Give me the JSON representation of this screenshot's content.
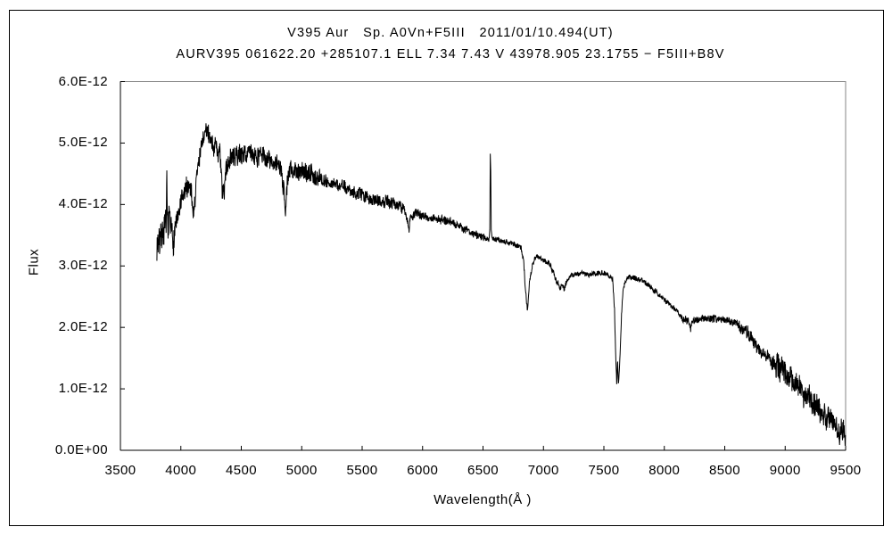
{
  "header": {
    "title_line1": "V395 Aur   Sp. A0Vn+F5III   2011/01/10.494(UT)",
    "title_line2": "AURV395 061622.20 +285107.1 ELL 7.34 7.43 V 43978.905 23.1755 − F5III+B8V"
  },
  "colors": {
    "background": "#ffffff",
    "plot_border": "#848484",
    "axis": "#000000",
    "line": "#000000",
    "text": "#000000"
  },
  "chart_data": {
    "type": "line",
    "title": "V395 Aur   Sp. A0Vn+F5III   2011/01/10.494(UT)",
    "subtitle": "AURV395 061622.20 +285107.1 ELL 7.34 7.43 V 43978.905 23.1755 − F5III+B8V",
    "xlabel": "Wavelength(Å )",
    "ylabel": "Flux",
    "grid": false,
    "legend": false,
    "xlim": [
      3500,
      9500
    ],
    "ylim_1e12": [
      0,
      6
    ],
    "x_ticks": [
      3500,
      4000,
      4500,
      5000,
      5500,
      6000,
      6500,
      7000,
      7500,
      8000,
      8500,
      9000,
      9500
    ],
    "x_tick_labels": [
      "3500",
      "4000",
      "4500",
      "5000",
      "5500",
      "6000",
      "6500",
      "7000",
      "7500",
      "8000",
      "8500",
      "9000",
      "9500"
    ],
    "y_ticks_1e12": [
      0,
      1,
      2,
      3,
      4,
      5,
      6
    ],
    "y_tick_labels": [
      "0.0E+00",
      "1.0E-12",
      "2.0E-12",
      "3.0E-12",
      "4.0E-12",
      "5.0E-12",
      "6.0E-12"
    ],
    "series": [
      {
        "name": "spectrum",
        "flux_unit_scale": "1e-12",
        "sample_step_angstrom": 2,
        "noise_seed": 7,
        "control_points": [
          [
            3802,
            3.35
          ],
          [
            3830,
            3.5
          ],
          [
            3858,
            3.62
          ],
          [
            3879,
            3.66
          ],
          [
            3883,
            4.38
          ],
          [
            3887,
            3.7
          ],
          [
            3910,
            3.66
          ],
          [
            3933,
            3.42
          ],
          [
            3955,
            3.68
          ],
          [
            3980,
            3.78
          ],
          [
            4005,
            4.05
          ],
          [
            4035,
            4.18
          ],
          [
            4060,
            4.27
          ],
          [
            4082,
            4.32
          ],
          [
            4098,
            4.0
          ],
          [
            4106,
            3.78
          ],
          [
            4118,
            4.15
          ],
          [
            4132,
            4.45
          ],
          [
            4152,
            4.75
          ],
          [
            4175,
            5.0
          ],
          [
            4200,
            5.12
          ],
          [
            4218,
            5.18
          ],
          [
            4240,
            5.1
          ],
          [
            4268,
            5.0
          ],
          [
            4295,
            4.9
          ],
          [
            4322,
            4.8
          ],
          [
            4338,
            4.35
          ],
          [
            4345,
            4.0
          ],
          [
            4352,
            4.35
          ],
          [
            4358,
            4.05
          ],
          [
            4372,
            4.62
          ],
          [
            4400,
            4.72
          ],
          [
            4440,
            4.78
          ],
          [
            4490,
            4.8
          ],
          [
            4540,
            4.85
          ],
          [
            4590,
            4.82
          ],
          [
            4640,
            4.8
          ],
          [
            4690,
            4.76
          ],
          [
            4740,
            4.7
          ],
          [
            4790,
            4.63
          ],
          [
            4830,
            4.55
          ],
          [
            4857,
            4.25
          ],
          [
            4866,
            3.86
          ],
          [
            4880,
            4.35
          ],
          [
            4902,
            4.52
          ],
          [
            4940,
            4.6
          ],
          [
            5000,
            4.55
          ],
          [
            5080,
            4.48
          ],
          [
            5160,
            4.42
          ],
          [
            5240,
            4.35
          ],
          [
            5320,
            4.3
          ],
          [
            5400,
            4.25
          ],
          [
            5480,
            4.18
          ],
          [
            5560,
            4.1
          ],
          [
            5640,
            4.08
          ],
          [
            5720,
            4.05
          ],
          [
            5800,
            3.98
          ],
          [
            5858,
            3.88
          ],
          [
            5880,
            3.7
          ],
          [
            5890,
            3.6
          ],
          [
            5898,
            3.78
          ],
          [
            5945,
            3.85
          ],
          [
            6010,
            3.82
          ],
          [
            6080,
            3.78
          ],
          [
            6160,
            3.76
          ],
          [
            6240,
            3.72
          ],
          [
            6310,
            3.65
          ],
          [
            6370,
            3.58
          ],
          [
            6430,
            3.52
          ],
          [
            6490,
            3.46
          ],
          [
            6530,
            3.44
          ],
          [
            6552,
            3.44
          ],
          [
            6556,
            3.6
          ],
          [
            6560,
            4.8
          ],
          [
            6564,
            4.5
          ],
          [
            6568,
            3.6
          ],
          [
            6574,
            3.45
          ],
          [
            6650,
            3.41
          ],
          [
            6710,
            3.39
          ],
          [
            6770,
            3.35
          ],
          [
            6815,
            3.28
          ],
          [
            6835,
            3.1
          ],
          [
            6852,
            2.6
          ],
          [
            6868,
            2.28
          ],
          [
            6886,
            2.78
          ],
          [
            6905,
            2.98
          ],
          [
            6928,
            3.12
          ],
          [
            6955,
            3.15
          ],
          [
            7000,
            3.1
          ],
          [
            7045,
            3.05
          ],
          [
            7085,
            2.9
          ],
          [
            7105,
            2.76
          ],
          [
            7125,
            2.72
          ],
          [
            7138,
            2.62
          ],
          [
            7155,
            2.68
          ],
          [
            7170,
            2.6
          ],
          [
            7190,
            2.73
          ],
          [
            7215,
            2.82
          ],
          [
            7255,
            2.86
          ],
          [
            7320,
            2.88
          ],
          [
            7390,
            2.87
          ],
          [
            7460,
            2.88
          ],
          [
            7530,
            2.87
          ],
          [
            7572,
            2.8
          ],
          [
            7588,
            2.3
          ],
          [
            7598,
            1.5
          ],
          [
            7606,
            1.08
          ],
          [
            7613,
            1.5
          ],
          [
            7619,
            1.1
          ],
          [
            7627,
            1.22
          ],
          [
            7637,
            1.75
          ],
          [
            7647,
            2.25
          ],
          [
            7657,
            2.58
          ],
          [
            7672,
            2.7
          ],
          [
            7692,
            2.78
          ],
          [
            7722,
            2.82
          ],
          [
            7762,
            2.82
          ],
          [
            7802,
            2.78
          ],
          [
            7842,
            2.72
          ],
          [
            7882,
            2.66
          ],
          [
            7922,
            2.6
          ],
          [
            7962,
            2.52
          ],
          [
            8002,
            2.45
          ],
          [
            8042,
            2.38
          ],
          [
            8082,
            2.32
          ],
          [
            8112,
            2.26
          ],
          [
            8142,
            2.14
          ],
          [
            8172,
            2.1
          ],
          [
            8200,
            2.12
          ],
          [
            8215,
            1.96
          ],
          [
            8232,
            2.1
          ],
          [
            8290,
            2.15
          ],
          [
            8350,
            2.16
          ],
          [
            8410,
            2.15
          ],
          [
            8470,
            2.13
          ],
          [
            8530,
            2.12
          ],
          [
            8590,
            2.08
          ],
          [
            8650,
            1.97
          ],
          [
            8710,
            1.87
          ],
          [
            8760,
            1.68
          ],
          [
            8800,
            1.6
          ],
          [
            8860,
            1.5
          ],
          [
            8900,
            1.44
          ],
          [
            8950,
            1.35
          ],
          [
            9000,
            1.25
          ],
          [
            9040,
            1.18
          ],
          [
            9080,
            1.08
          ],
          [
            9120,
            1.0
          ],
          [
            9160,
            0.92
          ],
          [
            9210,
            0.8
          ],
          [
            9260,
            0.68
          ],
          [
            9300,
            0.6
          ],
          [
            9350,
            0.52
          ],
          [
            9400,
            0.43
          ],
          [
            9442,
            0.3
          ],
          [
            9465,
            0.36
          ],
          [
            9500,
            0.26
          ]
        ],
        "noise_regions": [
          [
            3802,
            3960,
            0.19
          ],
          [
            3960,
            4330,
            0.13
          ],
          [
            4330,
            5150,
            0.12
          ],
          [
            5150,
            5860,
            0.075
          ],
          [
            5860,
            6520,
            0.05
          ],
          [
            6520,
            6840,
            0.032
          ],
          [
            6840,
            7580,
            0.032
          ],
          [
            7580,
            8130,
            0.032
          ],
          [
            8130,
            8620,
            0.045
          ],
          [
            8620,
            8920,
            0.08
          ],
          [
            8920,
            9505,
            0.15
          ]
        ]
      }
    ]
  }
}
